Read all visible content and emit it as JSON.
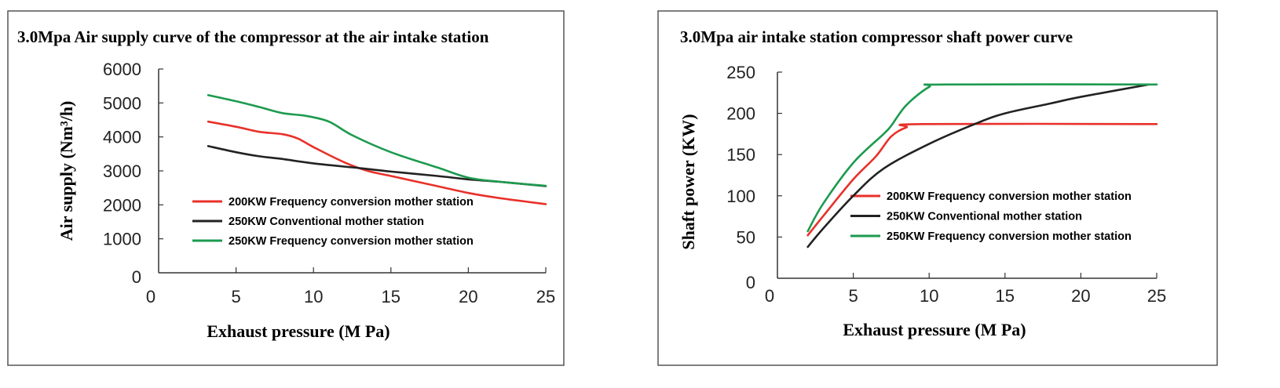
{
  "colors": {
    "red": "#e8312a",
    "black": "#222222",
    "green": "#1d9a4f"
  },
  "chart_data": [
    {
      "type": "line",
      "title": "3.0Mpa Air supply curve of the compressor at the air intake station",
      "xlabel": "Exhaust pressure (M Pa)",
      "ylabel": "Air supply (Nm³/h)",
      "xlim": [
        0,
        25
      ],
      "ylim": [
        0,
        6000
      ],
      "xticks": [
        0,
        5,
        10,
        15,
        20,
        25
      ],
      "yticks": [
        0,
        1000,
        2000,
        3000,
        4000,
        5000,
        6000
      ],
      "grid": false,
      "legend_position": "center-right",
      "series": [
        {
          "name": "200KW Frequency conversion mother station",
          "color": "red",
          "x": [
            3.2,
            5,
            6.5,
            8,
            9,
            10,
            12,
            13.5,
            15,
            18,
            20,
            22,
            25
          ],
          "y": [
            4450,
            4300,
            4150,
            4080,
            3950,
            3700,
            3250,
            3000,
            2850,
            2550,
            2350,
            2200,
            2020
          ]
        },
        {
          "name": "250KW Conventional mother station",
          "color": "black",
          "x": [
            3.2,
            5,
            6.5,
            8,
            10,
            13,
            15,
            18,
            20,
            22,
            25
          ],
          "y": [
            3730,
            3550,
            3430,
            3350,
            3220,
            3080,
            2980,
            2850,
            2750,
            2680,
            2550
          ]
        },
        {
          "name": "250KW Frequency conversion mother station",
          "color": "green",
          "x": [
            3.2,
            5,
            6.5,
            8,
            9.5,
            11,
            12.5,
            15,
            18,
            20,
            22,
            25
          ],
          "y": [
            5230,
            5050,
            4880,
            4700,
            4620,
            4450,
            4050,
            3550,
            3100,
            2800,
            2680,
            2560
          ]
        }
      ]
    },
    {
      "type": "line",
      "title": "3.0Mpa air intake station compressor shaft power curve",
      "xlabel": "Exhaust pressure (M Pa)",
      "ylabel": "Shaft power (KW)",
      "xlim": [
        0,
        25
      ],
      "ylim": [
        0,
        250
      ],
      "xticks": [
        0,
        5,
        10,
        15,
        20,
        25
      ],
      "yticks": [
        0,
        50,
        100,
        150,
        200,
        250
      ],
      "grid": false,
      "legend_position": "center-right",
      "series": [
        {
          "name": "200KW Frequency conversion mother station",
          "color": "red",
          "x": [
            2,
            3,
            5,
            6.5,
            7.5,
            8.5,
            9.5,
            25
          ],
          "y": [
            52,
            75,
            120,
            148,
            172,
            183,
            187,
            187
          ]
        },
        {
          "name": "250KW Conventional mother station",
          "color": "black",
          "x": [
            2,
            3,
            5,
            7,
            10,
            13,
            15,
            18,
            20,
            24.5
          ],
          "y": [
            38,
            60,
            100,
            133,
            163,
            187,
            200,
            212,
            220,
            235
          ]
        },
        {
          "name": "250KW Frequency conversion mother station",
          "color": "green",
          "x": [
            2,
            3,
            5,
            7,
            7.5,
            8.5,
            10,
            11,
            25
          ],
          "y": [
            57,
            90,
            140,
            175,
            185,
            210,
            232,
            235,
            235
          ]
        }
      ]
    }
  ]
}
